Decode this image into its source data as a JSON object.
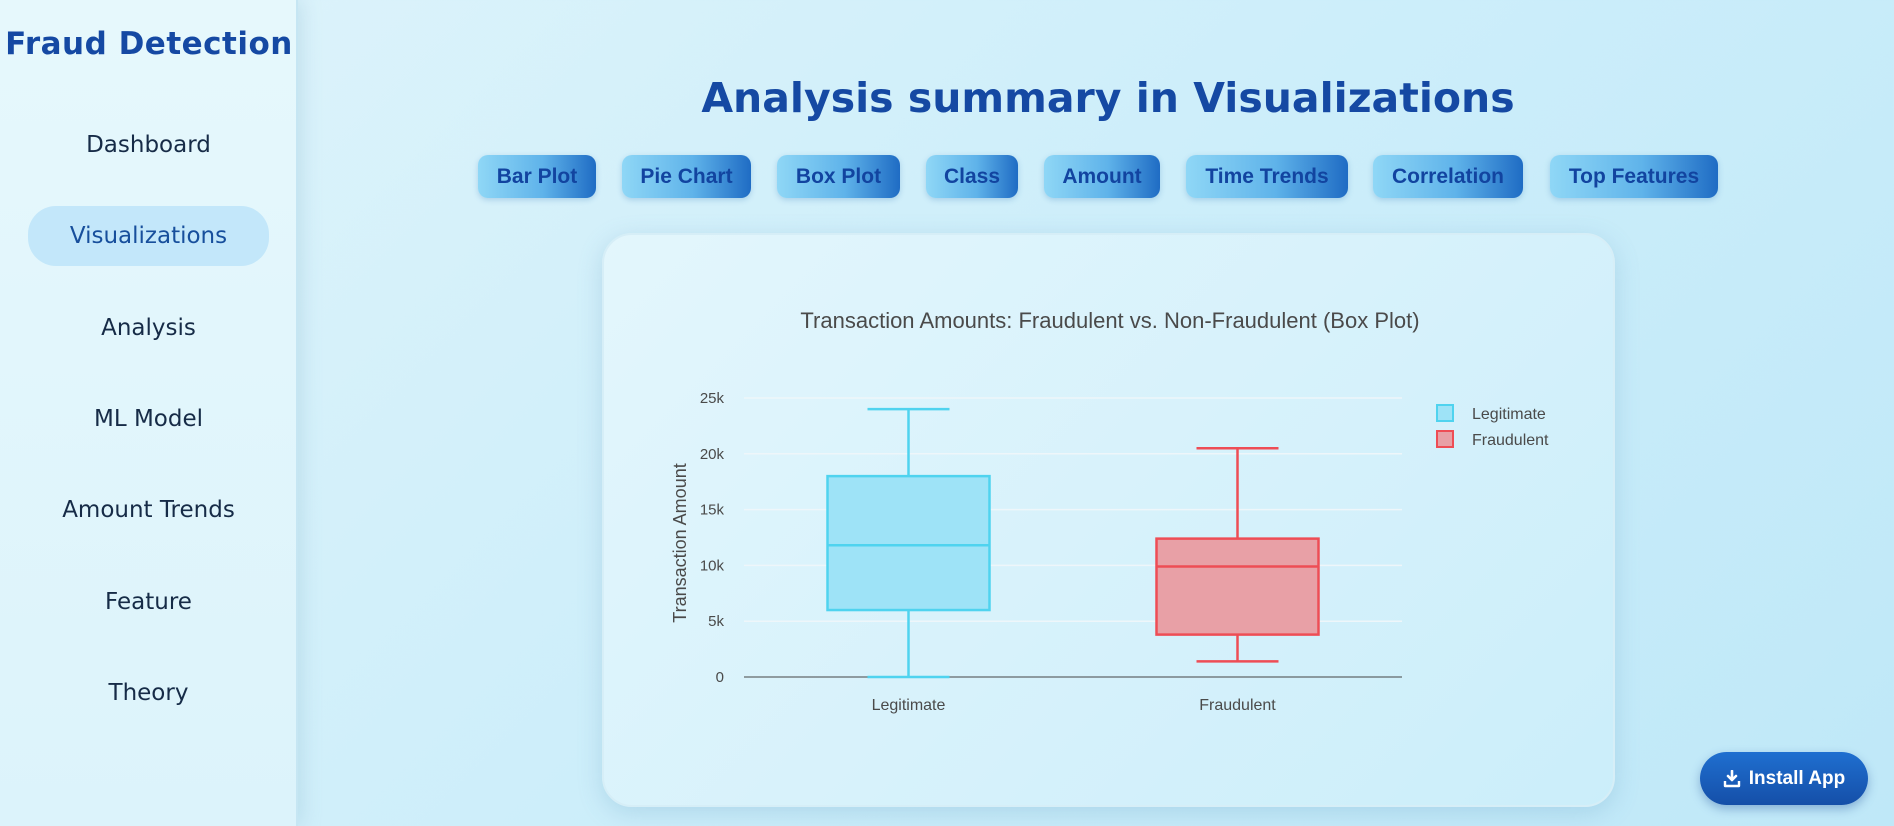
{
  "sidebar": {
    "brand": "Fraud Detection",
    "items": [
      {
        "label": "Dashboard",
        "active": false
      },
      {
        "label": "Visualizations",
        "active": true
      },
      {
        "label": "Analysis",
        "active": false
      },
      {
        "label": "ML Model",
        "active": false
      },
      {
        "label": "Amount Trends",
        "active": false
      },
      {
        "label": "Feature",
        "active": false
      },
      {
        "label": "Theory",
        "active": false
      }
    ]
  },
  "main": {
    "title": "Analysis summary in Visualizations",
    "tabs": [
      "Bar Plot",
      "Pie Chart",
      "Box Plot",
      "Class",
      "Amount",
      "Time Trends",
      "Correlation",
      "Top Features"
    ]
  },
  "install": {
    "label": "Install App",
    "icon": "download-icon"
  },
  "chart_data": {
    "type": "box",
    "title": "Transaction Amounts: Fraudulent vs. Non-Fraudulent (Box Plot)",
    "xlabel": "",
    "ylabel": "Transaction Amount",
    "ylim": [
      0,
      25000
    ],
    "yticks": [
      0,
      5000,
      10000,
      15000,
      20000,
      25000
    ],
    "ytick_labels": [
      "0",
      "5k",
      "10k",
      "15k",
      "20k",
      "25k"
    ],
    "grid": true,
    "legend_position": "top-right",
    "categories": [
      "Legitimate",
      "Fraudulent"
    ],
    "series": [
      {
        "name": "Legitimate",
        "min": 0,
        "q1": 6000,
        "median": 11800,
        "q3": 18000,
        "max": 24000,
        "color": "#4fd3ef",
        "fill": "#9ee3f7"
      },
      {
        "name": "Fraudulent",
        "min": 1400,
        "q1": 3800,
        "median": 9900,
        "q3": 12400,
        "max": 20500,
        "color": "#ee4d55",
        "fill": "#e8a0a6"
      }
    ]
  }
}
